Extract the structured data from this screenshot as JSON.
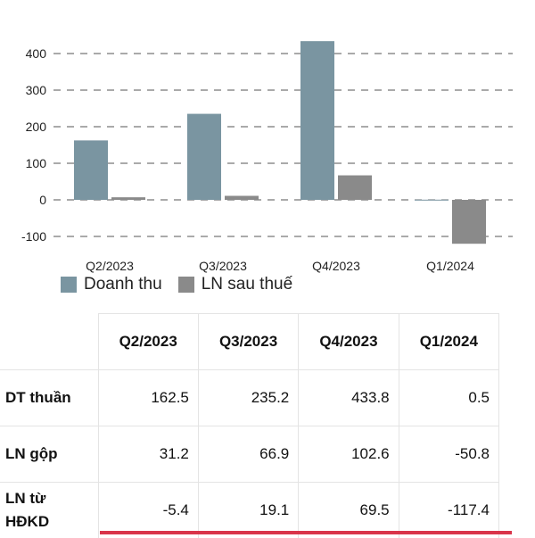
{
  "chart_data": {
    "type": "bar",
    "categories": [
      "Q2/2023",
      "Q3/2023",
      "Q4/2023",
      "Q1/2024"
    ],
    "series": [
      {
        "name": "Doanh thu",
        "color": "#7a95a1",
        "values": [
          162.5,
          235.2,
          433.8,
          0.5
        ]
      },
      {
        "name": "LN sau thuế",
        "color": "#8a8a8a",
        "values": [
          7,
          11,
          67,
          -120
        ]
      }
    ],
    "yticks": [
      -100,
      0,
      100,
      200,
      300,
      400
    ],
    "ylim": [
      -125,
      450
    ],
    "grid": true,
    "grid_style": "dashed",
    "legend_position": "bottom-left"
  },
  "table": {
    "headers": [
      "",
      "Q2/2023",
      "Q3/2023",
      "Q4/2023",
      "Q1/2024"
    ],
    "rows": [
      {
        "label": "DT thuần",
        "values": [
          "162.5",
          "235.2",
          "433.8",
          "0.5"
        ]
      },
      {
        "label": "LN gộp",
        "values": [
          "31.2",
          "66.9",
          "102.6",
          "-50.8"
        ]
      },
      {
        "label": "LN từ\nHĐKD",
        "values": [
          "-5.4",
          "19.1",
          "69.5",
          "-117.4"
        ]
      }
    ]
  },
  "accent_color": "#d9344a"
}
